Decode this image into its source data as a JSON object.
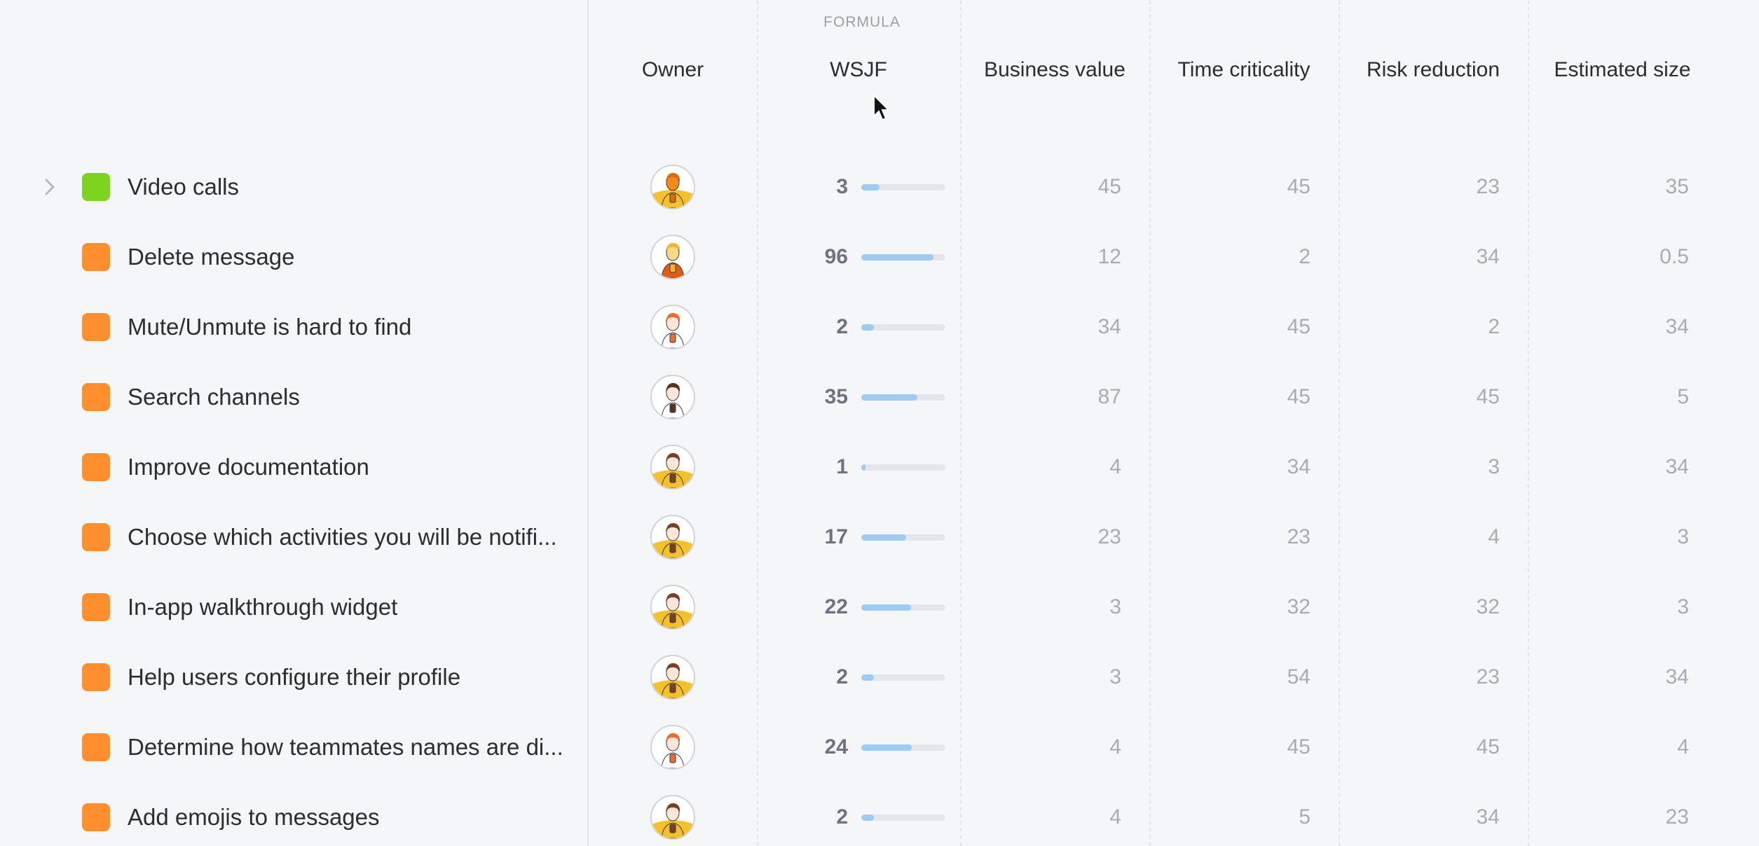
{
  "header": {
    "formula_label": "FORMULA",
    "columns": {
      "owner": "Owner",
      "wsjf": "WSJF",
      "business_value": "Business value",
      "time_criticality": "Time criticality",
      "risk_reduction": "Risk reduction",
      "estimated_size": "Estimated size"
    }
  },
  "colors": {
    "green": "#7ed321",
    "orange": "#ff8f2e",
    "bar": "#9ccbf4"
  },
  "rows": [
    {
      "title": "Video calls",
      "status": "green",
      "expandable": true,
      "avatar": "avatar-a",
      "wsjf": "3",
      "wsjf_fraction": 0.22,
      "business_value": "45",
      "time_criticality": "45",
      "risk_reduction": "23",
      "estimated_size": "35"
    },
    {
      "title": "Delete message",
      "status": "orange",
      "expandable": false,
      "avatar": "avatar-b",
      "wsjf": "96",
      "wsjf_fraction": 0.86,
      "business_value": "12",
      "time_criticality": "2",
      "risk_reduction": "34",
      "estimated_size": "0.5"
    },
    {
      "title": "Mute/Unmute is hard to find",
      "status": "orange",
      "expandable": false,
      "avatar": "avatar-c",
      "wsjf": "2",
      "wsjf_fraction": 0.15,
      "business_value": "34",
      "time_criticality": "45",
      "risk_reduction": "2",
      "estimated_size": "34"
    },
    {
      "title": "Search channels",
      "status": "orange",
      "expandable": false,
      "avatar": "avatar-d",
      "wsjf": "35",
      "wsjf_fraction": 0.67,
      "business_value": "87",
      "time_criticality": "45",
      "risk_reduction": "45",
      "estimated_size": "5"
    },
    {
      "title": "Improve documentation",
      "status": "orange",
      "expandable": false,
      "avatar": "avatar-e",
      "wsjf": "1",
      "wsjf_fraction": 0.05,
      "business_value": "4",
      "time_criticality": "34",
      "risk_reduction": "3",
      "estimated_size": "34"
    },
    {
      "title": "Choose which activities you will be notifi...",
      "status": "orange",
      "expandable": false,
      "avatar": "avatar-e",
      "wsjf": "17",
      "wsjf_fraction": 0.53,
      "business_value": "23",
      "time_criticality": "23",
      "risk_reduction": "4",
      "estimated_size": "3"
    },
    {
      "title": "In-app walkthrough widget",
      "status": "orange",
      "expandable": false,
      "avatar": "avatar-e",
      "wsjf": "22",
      "wsjf_fraction": 0.59,
      "business_value": "3",
      "time_criticality": "32",
      "risk_reduction": "32",
      "estimated_size": "3"
    },
    {
      "title": "Help users configure their profile",
      "status": "orange",
      "expandable": false,
      "avatar": "avatar-e",
      "wsjf": "2",
      "wsjf_fraction": 0.15,
      "business_value": "3",
      "time_criticality": "54",
      "risk_reduction": "23",
      "estimated_size": "34"
    },
    {
      "title": "Determine how teammates names are di...",
      "status": "orange",
      "expandable": false,
      "avatar": "avatar-c",
      "wsjf": "24",
      "wsjf_fraction": 0.6,
      "business_value": "4",
      "time_criticality": "45",
      "risk_reduction": "45",
      "estimated_size": "4"
    },
    {
      "title": "Add emojis to messages",
      "status": "orange",
      "expandable": false,
      "avatar": "avatar-e",
      "wsjf": "2",
      "wsjf_fraction": 0.15,
      "business_value": "4",
      "time_criticality": "5",
      "risk_reduction": "34",
      "estimated_size": "23"
    }
  ]
}
